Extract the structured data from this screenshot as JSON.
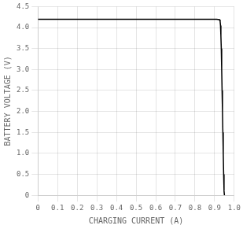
{
  "chart_data": {
    "type": "line",
    "xlabel": "CHARGING CURRENT (A)",
    "ylabel": "BATTERY VOLTAGE (V)",
    "x": [
      0.0,
      0.91,
      0.925,
      0.928,
      0.93,
      0.932,
      0.934,
      0.936,
      0.938,
      0.94,
      0.942,
      0.944,
      0.946,
      0.948,
      0.95
    ],
    "values": [
      4.2,
      4.2,
      4.19,
      4.15,
      4.05,
      3.8,
      3.5,
      3.0,
      2.5,
      2.0,
      1.5,
      1.0,
      0.5,
      0.1,
      0.0
    ],
    "color": "#000000",
    "xlim": [
      0,
      1.0
    ],
    "ylim": [
      0,
      4.5
    ],
    "xticks": [
      0,
      0.1,
      0.2,
      0.3,
      0.4,
      0.5,
      0.6,
      0.7,
      0.8,
      0.9,
      {
        "value": 1.0,
        "label": "1.0"
      }
    ],
    "yticks": [
      0,
      0.5,
      {
        "value": 1.0,
        "label": "1.0"
      },
      1.5,
      {
        "value": 2.0,
        "label": "2.0"
      },
      2.5,
      {
        "value": 3.0,
        "label": "3.0"
      },
      3.5,
      {
        "value": 4.0,
        "label": "4.0"
      },
      4.5
    ],
    "grid": true
  }
}
